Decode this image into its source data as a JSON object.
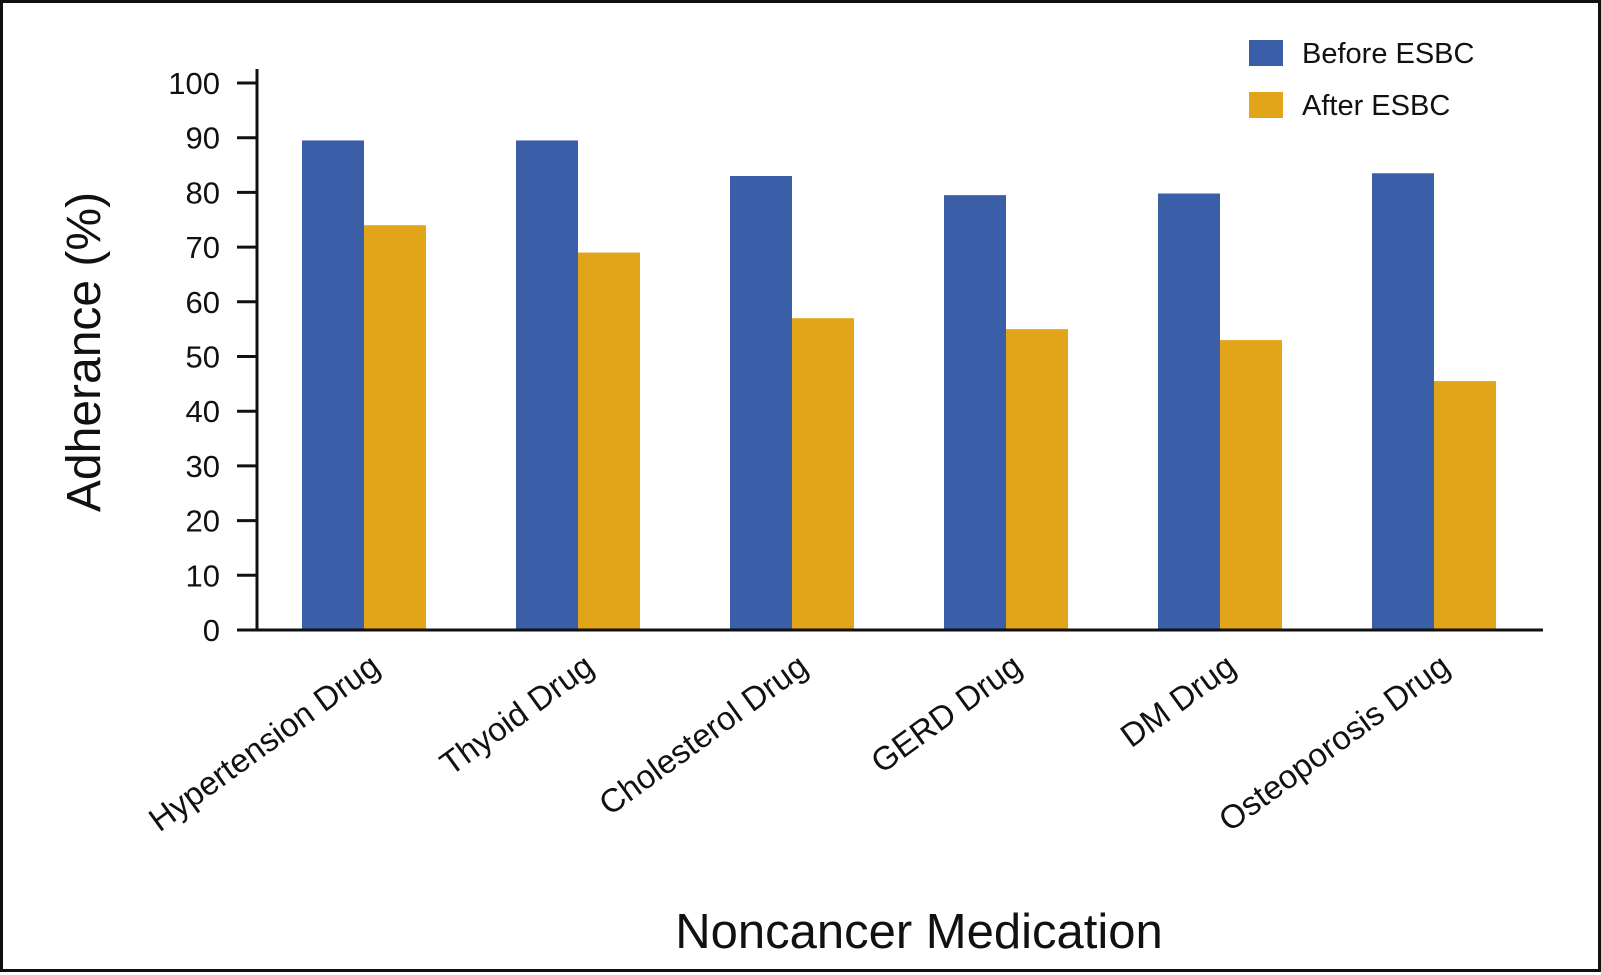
{
  "colors": {
    "before": "#3a5ea8",
    "after": "#e2a418",
    "axis": "#111111"
  },
  "chart_data": {
    "type": "bar",
    "xlabel": "Noncancer Medication",
    "ylabel": "Adherance (%)",
    "ylim": [
      0,
      100
    ],
    "yticks": [
      0,
      10,
      20,
      30,
      40,
      50,
      60,
      70,
      80,
      90,
      100
    ],
    "grid": false,
    "legend": "top-right",
    "categories": [
      "Hypertension Drug",
      "Thyoid Drug",
      "Cholesterol Drug",
      "GERD Drug",
      "DM Drug",
      "Osteoporosis Drug"
    ],
    "series": [
      {
        "name": "Before ESBC",
        "values": [
          89.5,
          89.5,
          83,
          79.5,
          79.8,
          83.5
        ]
      },
      {
        "name": "After ESBC",
        "values": [
          74,
          69,
          57,
          55,
          53,
          45.5
        ]
      }
    ]
  }
}
